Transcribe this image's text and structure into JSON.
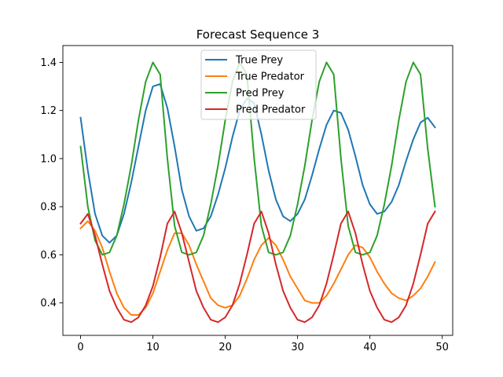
{
  "chart_data": {
    "type": "line",
    "title": "Forecast Sequence 3",
    "xlabel": "",
    "ylabel": "",
    "xlim": [
      -2.45,
      51.45
    ],
    "ylim": [
      0.265,
      1.47
    ],
    "xticks": [
      0,
      10,
      20,
      30,
      40,
      50
    ],
    "yticks": [
      0.4,
      0.6,
      0.8,
      1.0,
      1.2,
      1.4
    ],
    "ytick_labels": [
      "0.4",
      "0.6",
      "0.8",
      "1.0",
      "1.2",
      "1.4"
    ],
    "grid": false,
    "legend_position": "upper center",
    "x": [
      0,
      1,
      2,
      3,
      4,
      5,
      6,
      7,
      8,
      9,
      10,
      11,
      12,
      13,
      14,
      15,
      16,
      17,
      18,
      19,
      20,
      21,
      22,
      23,
      24,
      25,
      26,
      27,
      28,
      29,
      30,
      31,
      32,
      33,
      34,
      35,
      36,
      37,
      38,
      39,
      40,
      41,
      42,
      43,
      44,
      45,
      46,
      47,
      48,
      49
    ],
    "series": [
      {
        "name": "True Prey",
        "color": "#1f77b4",
        "values": [
          1.17,
          0.95,
          0.77,
          0.68,
          0.65,
          0.68,
          0.77,
          0.9,
          1.05,
          1.2,
          1.3,
          1.31,
          1.21,
          1.05,
          0.87,
          0.76,
          0.7,
          0.71,
          0.76,
          0.85,
          0.96,
          1.09,
          1.2,
          1.25,
          1.23,
          1.1,
          0.95,
          0.83,
          0.76,
          0.74,
          0.77,
          0.83,
          0.93,
          1.04,
          1.14,
          1.2,
          1.19,
          1.12,
          1.01,
          0.89,
          0.81,
          0.77,
          0.78,
          0.82,
          0.89,
          0.99,
          1.08,
          1.15,
          1.17,
          1.13
        ]
      },
      {
        "name": "True Predator",
        "color": "#ff7f0e",
        "values": [
          0.71,
          0.74,
          0.7,
          0.63,
          0.53,
          0.44,
          0.38,
          0.35,
          0.35,
          0.38,
          0.44,
          0.53,
          0.62,
          0.69,
          0.69,
          0.64,
          0.56,
          0.49,
          0.42,
          0.39,
          0.38,
          0.39,
          0.43,
          0.5,
          0.58,
          0.64,
          0.67,
          0.64,
          0.58,
          0.51,
          0.46,
          0.41,
          0.4,
          0.4,
          0.43,
          0.48,
          0.54,
          0.6,
          0.64,
          0.63,
          0.59,
          0.53,
          0.48,
          0.44,
          0.42,
          0.41,
          0.43,
          0.46,
          0.51,
          0.57
        ]
      },
      {
        "name": "Pred Prey",
        "color": "#2ca02c",
        "values": [
          1.05,
          0.8,
          0.66,
          0.6,
          0.61,
          0.68,
          0.81,
          0.97,
          1.16,
          1.32,
          1.4,
          1.35,
          1.0,
          0.72,
          0.61,
          0.6,
          0.61,
          0.68,
          0.81,
          0.97,
          1.16,
          1.32,
          1.4,
          1.35,
          1.0,
          0.72,
          0.61,
          0.6,
          0.61,
          0.68,
          0.81,
          0.97,
          1.16,
          1.32,
          1.4,
          1.35,
          1.0,
          0.72,
          0.61,
          0.6,
          0.61,
          0.68,
          0.81,
          0.97,
          1.16,
          1.32,
          1.4,
          1.35,
          1.04,
          0.8
        ]
      },
      {
        "name": "Pred Predator",
        "color": "#d62728",
        "values": [
          0.73,
          0.77,
          0.68,
          0.56,
          0.45,
          0.38,
          0.33,
          0.32,
          0.34,
          0.39,
          0.47,
          0.59,
          0.73,
          0.78,
          0.69,
          0.57,
          0.45,
          0.38,
          0.33,
          0.32,
          0.34,
          0.39,
          0.48,
          0.6,
          0.73,
          0.78,
          0.69,
          0.56,
          0.45,
          0.38,
          0.33,
          0.32,
          0.34,
          0.39,
          0.48,
          0.6,
          0.73,
          0.78,
          0.69,
          0.56,
          0.45,
          0.38,
          0.33,
          0.32,
          0.34,
          0.39,
          0.48,
          0.6,
          0.73,
          0.78
        ]
      }
    ]
  }
}
